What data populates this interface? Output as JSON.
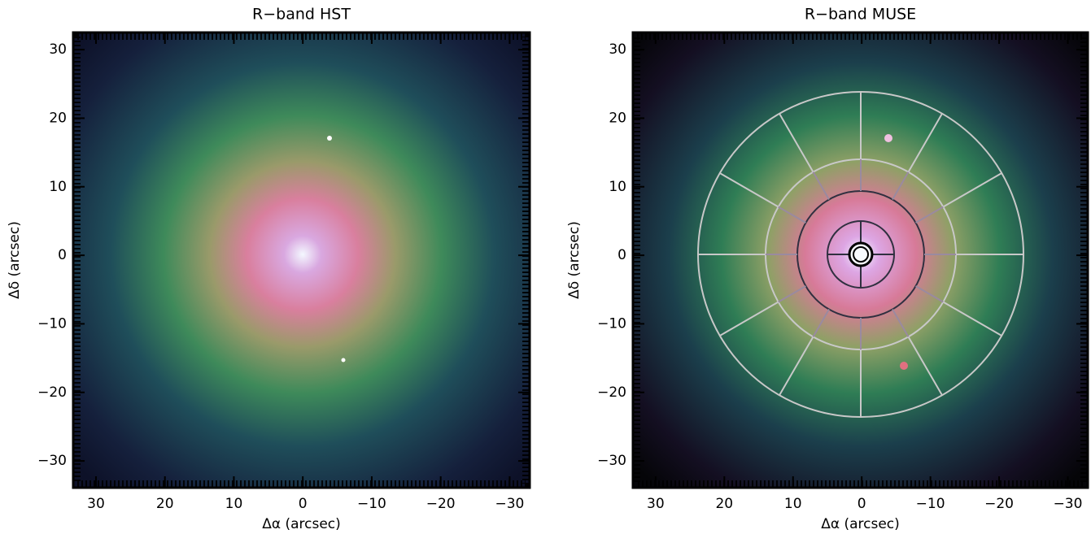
{
  "chart_data": [
    {
      "type": "image",
      "title": "R−band HST",
      "xlabel": "Δα (arcsec)",
      "ylabel": "Δδ (arcsec)",
      "xlim": [
        33.3,
        -32.9
      ],
      "ylim": [
        -33.9,
        32.5
      ],
      "xticks": [
        30,
        20,
        10,
        0,
        {
          "value": -10,
          "label": "−10"
        },
        {
          "value": -20,
          "label": "−20"
        },
        {
          "value": -30,
          "label": "−30"
        }
      ],
      "yticks": [
        {
          "value": -30,
          "label": "−30"
        },
        {
          "value": -20,
          "label": "−20"
        },
        {
          "value": -10,
          "label": "−10"
        },
        0,
        10,
        20,
        30
      ]
    },
    {
      "type": "image",
      "title": "R−band MUSE",
      "xlabel": "Δα (arcsec)",
      "ylabel": "Δδ (arcsec)",
      "xlim": [
        33.3,
        -32.9
      ],
      "ylim": [
        -33.9,
        32.5
      ],
      "xticks": [
        30,
        20,
        10,
        0,
        {
          "value": -10,
          "label": "−10"
        },
        {
          "value": -20,
          "label": "−20"
        },
        {
          "value": -30,
          "label": "−30"
        }
      ],
      "yticks": [
        {
          "value": -30,
          "label": "−30"
        },
        {
          "value": -20,
          "label": "−20"
        },
        {
          "value": -10,
          "label": "−10"
        },
        0,
        10,
        20,
        30
      ]
    }
  ]
}
